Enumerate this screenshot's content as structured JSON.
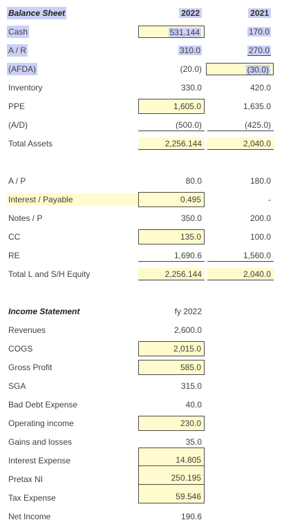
{
  "balance_sheet": {
    "title": "Balance Sheet",
    "col_2022": "2022",
    "col_2021": "2021",
    "rows": [
      {
        "label": "Cash",
        "v2022": "531.144",
        "v2021": "170.0"
      },
      {
        "label": "A / R",
        "v2022": "310.0",
        "v2021": "270.0"
      },
      {
        "label": "(AFDA)",
        "v2022": "(20.0)",
        "v2021": "(30.0)"
      },
      {
        "label": "Inventory",
        "v2022": "330.0",
        "v2021": "420.0"
      },
      {
        "label": "PPE",
        "v2022": "1,605.0",
        "v2021": "1,635.0"
      },
      {
        "label": "(A/D)",
        "v2022": "(500.0)",
        "v2021": "(425.0)"
      },
      {
        "label": "Total Assets",
        "v2022": "2,256.144",
        "v2021": "2,040.0"
      }
    ]
  },
  "liabilities": {
    "rows": [
      {
        "label": "A / P",
        "v2022": "80.0",
        "v2021": "180.0"
      },
      {
        "label": "Interest / Payable",
        "v2022": "0.495",
        "v2021": "-"
      },
      {
        "label": "Notes / P",
        "v2022": "350.0",
        "v2021": "200.0"
      },
      {
        "label": "CC",
        "v2022": "135.0",
        "v2021": "100.0"
      },
      {
        "label": "RE",
        "v2022": "1,690.6",
        "v2021": "1,560.0"
      },
      {
        "label": "Total L and S/H Equity",
        "v2022": "2,256.144",
        "v2021": "2,040.0"
      }
    ]
  },
  "income_statement": {
    "title": "Income Statement",
    "col": "fy 2022",
    "rows": [
      {
        "label": "Revenues",
        "value": "2,600.0"
      },
      {
        "label": "COGS",
        "value": "2,015.0"
      },
      {
        "label": "Gross Profit",
        "value": "585.0"
      },
      {
        "label": "SGA",
        "value": "315.0"
      },
      {
        "label": "Bad Debt Expense",
        "value": "40.0"
      },
      {
        "label": "Operating income",
        "value": "230.0"
      },
      {
        "label": "Gains and losses",
        "value": "35.0"
      },
      {
        "label": "Interest Expense",
        "value": "14.805"
      },
      {
        "label": "Pretax NI",
        "value": "250.195"
      },
      {
        "label": "Tax Expense",
        "value": "59.546"
      },
      {
        "label": "Net Income",
        "value": "190.6"
      }
    ]
  }
}
